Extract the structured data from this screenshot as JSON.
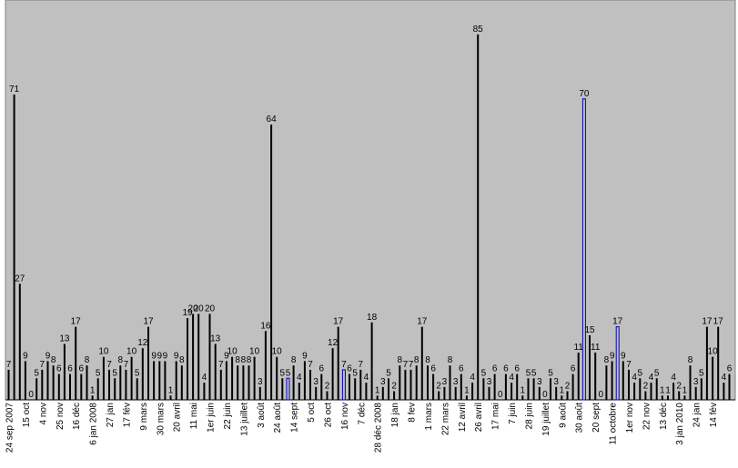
{
  "chart_data": {
    "type": "bar",
    "title": "",
    "xlabel": "",
    "ylabel": "",
    "ylim": [
      0,
      93
    ],
    "grid": false,
    "legend": "none",
    "colors": {
      "plot_background": "#c0c0c0",
      "bar": "#000000",
      "highlight_bar": "#0000c0"
    },
    "values": [
      7,
      71,
      27,
      9,
      0,
      5,
      7,
      9,
      8,
      6,
      13,
      6,
      17,
      6,
      8,
      1,
      5,
      10,
      7,
      5,
      8,
      7,
      10,
      5,
      12,
      17,
      9,
      9,
      9,
      1,
      9,
      8,
      19,
      20,
      20,
      4,
      20,
      13,
      7,
      9,
      10,
      8,
      8,
      8,
      10,
      3,
      16,
      64,
      10,
      5,
      5,
      8,
      4,
      9,
      7,
      3,
      6,
      2,
      12,
      17,
      7,
      6,
      5,
      7,
      4,
      18,
      1,
      3,
      5,
      2,
      8,
      7,
      7,
      8,
      17,
      8,
      6,
      2,
      3,
      8,
      3,
      6,
      1,
      4,
      85,
      5,
      3,
      6,
      0,
      6,
      4,
      6,
      1,
      5,
      5,
      3,
      0,
      5,
      3,
      1,
      2,
      6,
      11,
      70,
      15,
      11,
      0,
      8,
      9,
      17,
      9,
      7,
      4,
      5,
      2,
      4,
      5,
      1,
      1,
      4,
      2,
      1,
      8,
      3,
      5,
      17,
      10,
      17,
      4,
      6
    ],
    "highlighted_indices": [
      50,
      60,
      103,
      109
    ],
    "tick_labels": [
      {
        "label": "24 sep 2007",
        "index": 0
      },
      {
        "label": "15 oct",
        "index": 3
      },
      {
        "label": "4 nov",
        "index": 6
      },
      {
        "label": "25 nov",
        "index": 9
      },
      {
        "label": "16 déc",
        "index": 12
      },
      {
        "label": "6 jan 2008",
        "index": 15
      },
      {
        "label": "27 jan",
        "index": 18
      },
      {
        "label": "17 fév",
        "index": 21
      },
      {
        "label": "9 mars",
        "index": 24
      },
      {
        "label": "30 mars",
        "index": 27
      },
      {
        "label": "20 avril",
        "index": 30
      },
      {
        "label": "11 mai",
        "index": 33
      },
      {
        "label": "1er juin",
        "index": 36
      },
      {
        "label": "22 juin",
        "index": 39
      },
      {
        "label": "13 juillet",
        "index": 42
      },
      {
        "label": "3 août",
        "index": 45
      },
      {
        "label": "24 août",
        "index": 48
      },
      {
        "label": "14 sept",
        "index": 51
      },
      {
        "label": "5 oct",
        "index": 54
      },
      {
        "label": "26 oct",
        "index": 57
      },
      {
        "label": "16 nov",
        "index": 60
      },
      {
        "label": "7 déc",
        "index": 63
      },
      {
        "label": "28 déc 2008",
        "index": 66
      },
      {
        "label": "18 jan",
        "index": 69
      },
      {
        "label": "8 fev",
        "index": 72
      },
      {
        "label": "1 mars",
        "index": 75
      },
      {
        "label": "22 mars",
        "index": 78
      },
      {
        "label": "12 avril",
        "index": 81
      },
      {
        "label": "26 avril",
        "index": 84
      },
      {
        "label": "17 mai",
        "index": 87
      },
      {
        "label": "7 juin",
        "index": 90
      },
      {
        "label": "28 juin",
        "index": 93
      },
      {
        "label": "19 juillet",
        "index": 96
      },
      {
        "label": "9 août",
        "index": 99
      },
      {
        "label": "30 août",
        "index": 102
      },
      {
        "label": "20 sept",
        "index": 105
      },
      {
        "label": "11 octobre",
        "index": 108
      },
      {
        "label": "1er nov",
        "index": 111
      },
      {
        "label": "22 nov",
        "index": 114
      },
      {
        "label": "13 déc",
        "index": 117
      },
      {
        "label": "3 jan 2010",
        "index": 120
      },
      {
        "label": "24 jan",
        "index": 123
      },
      {
        "label": "14 fév",
        "index": 126
      }
    ]
  }
}
